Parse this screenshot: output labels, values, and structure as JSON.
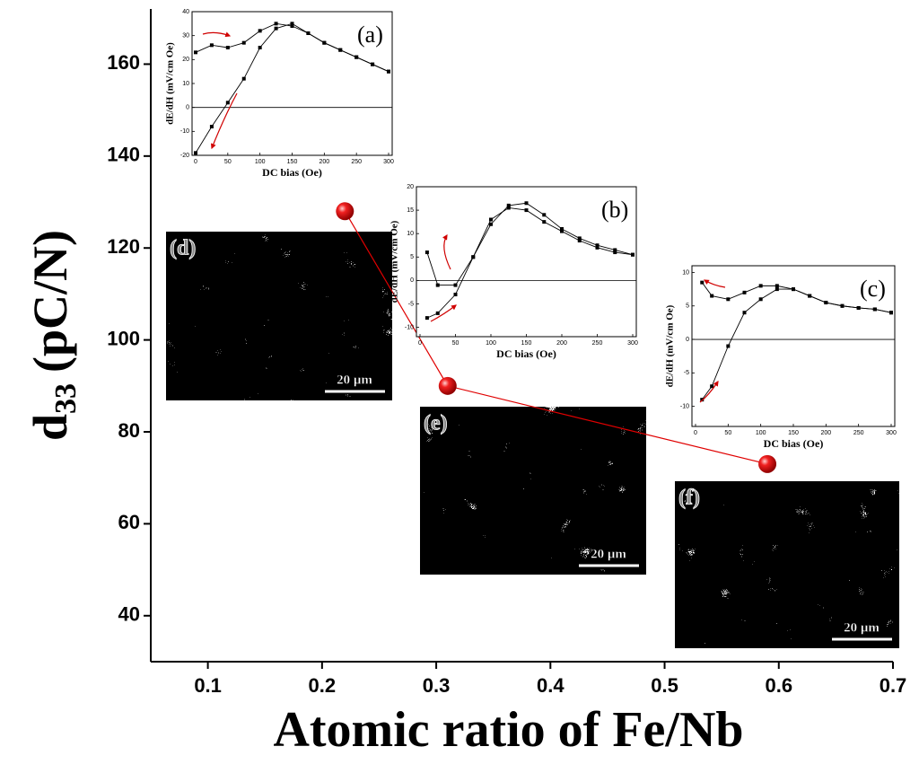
{
  "chart_data": [
    {
      "type": "scatter",
      "xlabel": "Atomic ratio of Fe/Nb",
      "ylabel": [
        "d",
        "33",
        "(pC/N)"
      ],
      "x": [
        0.22,
        0.31,
        0.59
      ],
      "values": [
        128,
        90,
        73
      ],
      "color": "#e00000",
      "connect": true,
      "xlim": [
        0.05,
        0.7
      ],
      "ylim": [
        30,
        172
      ],
      "xticks": [
        0.1,
        0.2,
        0.3,
        0.4,
        0.5,
        0.6,
        0.7
      ],
      "yticks": [
        40,
        60,
        80,
        100,
        120,
        140,
        160
      ]
    },
    {
      "type": "line",
      "label": "(a)",
      "xlabel": "DC bias (Oe)",
      "ylabel": "dE/dH (mV/cm Oe)",
      "x": [
        0,
        25,
        50,
        75,
        100,
        125,
        150,
        175,
        200,
        225,
        250,
        275,
        300
      ],
      "series": [
        {
          "color": "#000000",
          "values": [
            23,
            26,
            25,
            27,
            32,
            35,
            34,
            31,
            27,
            24,
            21,
            18,
            15
          ]
        },
        {
          "color": "#000000",
          "values": [
            -19,
            -8,
            2,
            12,
            25,
            33,
            35,
            31,
            27,
            24,
            21,
            18,
            15
          ]
        }
      ],
      "xlim": [
        0,
        300
      ],
      "ylim": [
        -20,
        40
      ],
      "xticks": [
        0,
        50,
        100,
        150,
        200,
        250,
        300
      ],
      "yticks": [
        -20,
        -10,
        0,
        10,
        20,
        30,
        40
      ],
      "zero_line": true
    },
    {
      "type": "line",
      "label": "(b)",
      "xlabel": "DC bias (Oe)",
      "ylabel": "dE/dH (mV/cm Oe)",
      "x": [
        10,
        25,
        50,
        75,
        100,
        125,
        150,
        175,
        200,
        225,
        250,
        275,
        300
      ],
      "series": [
        {
          "color": "#000000",
          "values": [
            6,
            -1,
            -1,
            5,
            12,
            16,
            16.5,
            14,
            11,
            9,
            7.5,
            6.5,
            5.5
          ]
        },
        {
          "color": "#000000",
          "values": [
            -8,
            -7,
            -3,
            5,
            13,
            15.5,
            15,
            12.5,
            10.5,
            8.5,
            7,
            6,
            5.5
          ]
        }
      ],
      "xlim": [
        0,
        300
      ],
      "ylim": [
        -12,
        20
      ],
      "xticks": [
        0,
        50,
        100,
        150,
        200,
        250,
        300
      ],
      "yticks": [
        -10,
        -5,
        0,
        5,
        10,
        15,
        20
      ],
      "zero_line": true
    },
    {
      "type": "line",
      "label": "(c)",
      "xlabel": "DC bias (Oe)",
      "ylabel": "dE/dH (mV/cm Oe)",
      "x": [
        10,
        25,
        50,
        75,
        100,
        125,
        150,
        175,
        200,
        225,
        250,
        275,
        300
      ],
      "series": [
        {
          "color": "#000000",
          "values": [
            8.5,
            6.5,
            6,
            7,
            8,
            8,
            7.5,
            6.5,
            5.5,
            5,
            4.7,
            4.5,
            4
          ]
        },
        {
          "color": "#000000",
          "values": [
            -9,
            -7,
            -1,
            4,
            6,
            7.5,
            7.5,
            6.5,
            5.5,
            5,
            4.7,
            4.5,
            4
          ]
        }
      ],
      "xlim": [
        0,
        300
      ],
      "ylim": [
        -13,
        11
      ],
      "xticks": [
        0,
        50,
        100,
        150,
        200,
        250,
        300
      ],
      "yticks": [
        -10,
        -5,
        0,
        5,
        10
      ],
      "zero_line": true
    }
  ],
  "images": [
    {
      "label": "(d)",
      "scale_bar": "20 μm"
    },
    {
      "label": "(e)",
      "scale_bar": "20 μm"
    },
    {
      "label": "(f)",
      "scale_bar": "20 μm"
    }
  ]
}
